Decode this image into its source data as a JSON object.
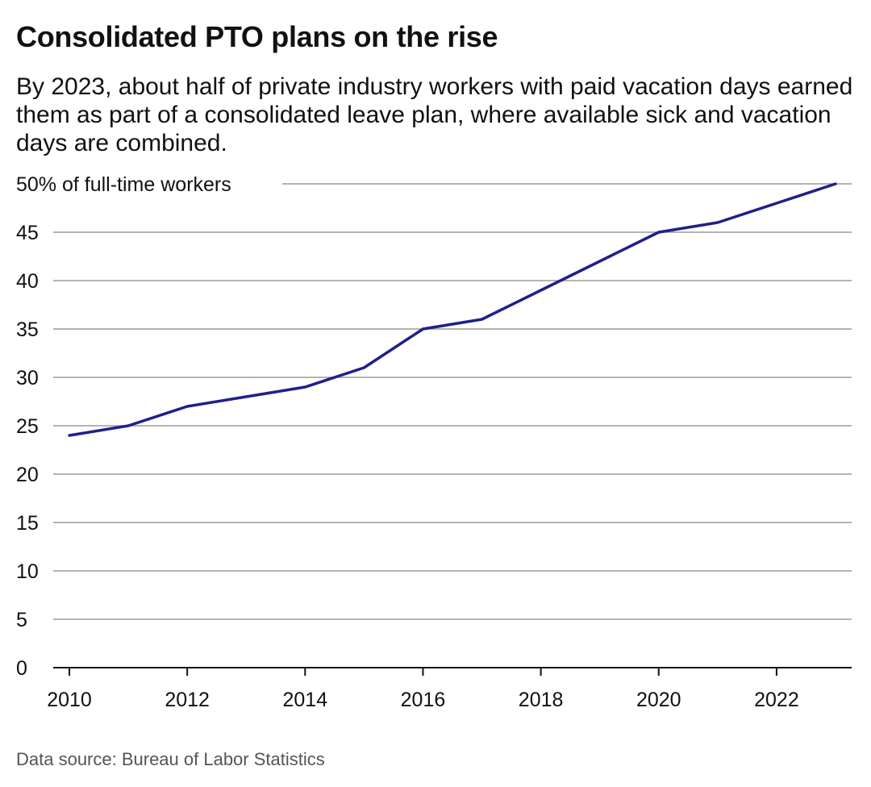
{
  "title": "Consolidated PTO plans on the rise",
  "subtitle": "By 2023, about half of private industry workers with paid vacation days earned them as part of a consolidated leave plan, where available sick and vacation days are combined.",
  "source": "Data source: Bureau of Labor Statistics",
  "colors": {
    "line": "#1f1f8c",
    "grid": "#9a9a9a",
    "text": "#111111",
    "source_text": "#555555"
  },
  "chart_data": {
    "type": "line",
    "title": "Consolidated PTO plans on the rise",
    "ylabel": "50% of full-time workers",
    "xlim": [
      2010,
      2023
    ],
    "ylim": [
      0,
      50
    ],
    "grid": true,
    "x_ticks": [
      "2010",
      "2012",
      "2014",
      "2016",
      "2018",
      "2020",
      "2022"
    ],
    "y_ticks": [
      "0",
      "5",
      "10",
      "15",
      "20",
      "25",
      "30",
      "35",
      "40",
      "45",
      "50% of full-time workers"
    ],
    "x": [
      2010,
      2011,
      2012,
      2013,
      2014,
      2015,
      2016,
      2017,
      2018,
      2019,
      2020,
      2021,
      2022,
      2023
    ],
    "series": [
      {
        "values": [
          24,
          25,
          27,
          28,
          29,
          31,
          35,
          36,
          39,
          42,
          45,
          46,
          48,
          50
        ]
      }
    ]
  }
}
